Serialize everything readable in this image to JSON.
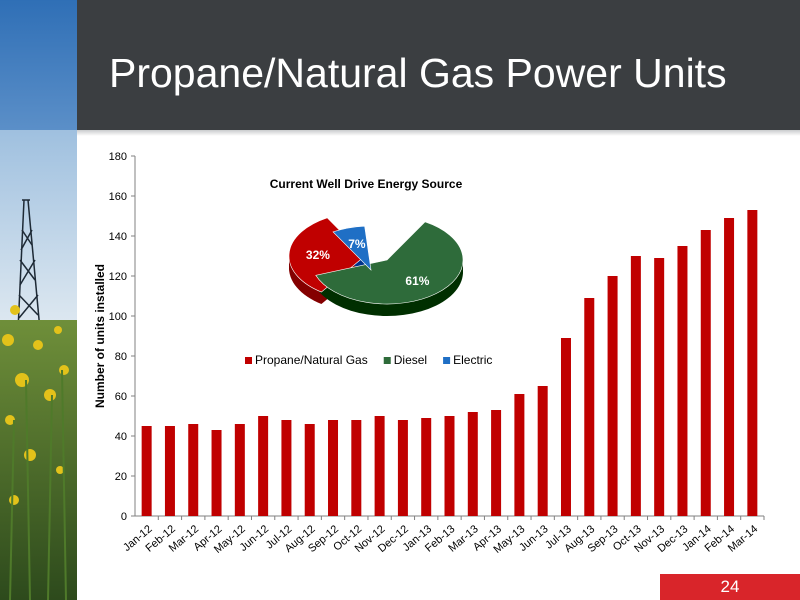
{
  "slide": {
    "title": "Propane/Natural Gas Power Units",
    "page_number": "24"
  },
  "colors": {
    "bar": "#c00000",
    "propane": "#c00000",
    "diesel": "#2e6b3a",
    "electric": "#1f6fc5",
    "header_bg": "#3b3e41",
    "page_badge": "#d9252a"
  },
  "chart_data": [
    {
      "type": "bar",
      "categories": [
        "Jan-12",
        "Feb-12",
        "Mar-12",
        "Apr-12",
        "May-12",
        "Jun-12",
        "Jul-12",
        "Aug-12",
        "Sep-12",
        "Oct-12",
        "Nov-12",
        "Dec-12",
        "Jan-13",
        "Feb-13",
        "Mar-13",
        "Apr-13",
        "May-13",
        "Jun-13",
        "Jul-13",
        "Aug-13",
        "Sep-13",
        "Oct-13",
        "Nov-13",
        "Dec-13",
        "Jan-14",
        "Feb-14",
        "Mar-14"
      ],
      "values": [
        45,
        45,
        46,
        43,
        46,
        50,
        48,
        46,
        48,
        48,
        50,
        48,
        49,
        50,
        52,
        53,
        61,
        65,
        89,
        109,
        120,
        130,
        129,
        135,
        143,
        149,
        153
      ],
      "ylabel": "Number of units installed",
      "xlabel": "",
      "ylim": [
        0,
        180
      ],
      "yticks": [
        0,
        20,
        40,
        60,
        80,
        100,
        120,
        140,
        160,
        180
      ],
      "grid": false
    },
    {
      "type": "pie",
      "title": "Current Well Drive Energy Source",
      "slices": [
        {
          "label": "Propane/Natural Gas",
          "value": 32,
          "display": "32%",
          "color": "#c00000"
        },
        {
          "label": "Diesel",
          "value": 61,
          "display": "61%",
          "color": "#2e6b3a"
        },
        {
          "label": "Electric",
          "value": 7,
          "display": "7%",
          "color": "#1f6fc5"
        }
      ],
      "legend_position": "bottom"
    }
  ]
}
